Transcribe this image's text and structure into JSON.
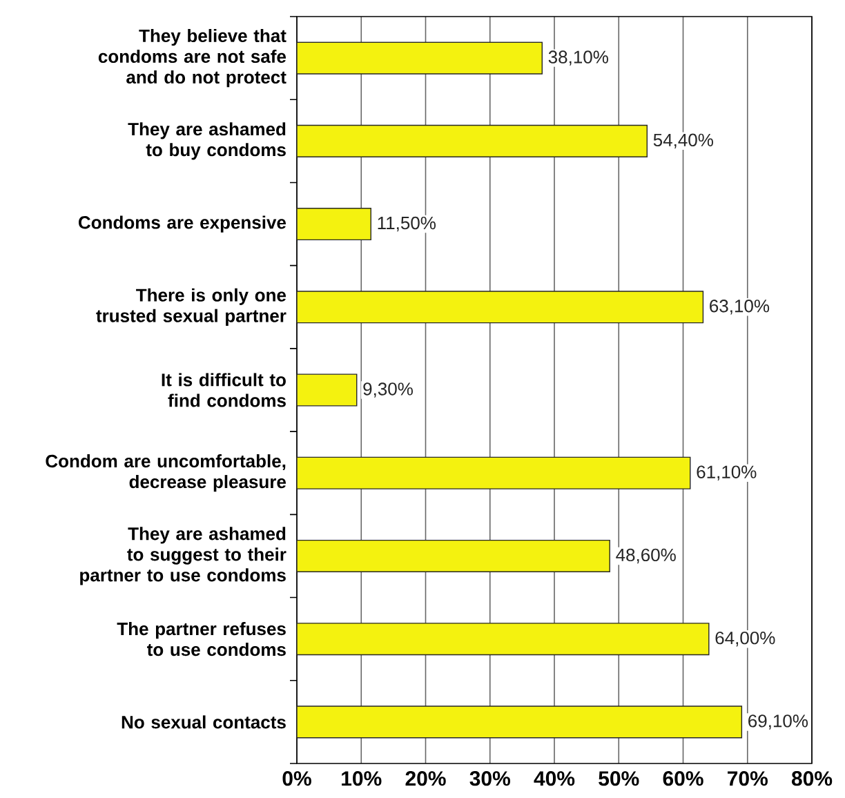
{
  "chart_data": {
    "type": "bar",
    "orientation": "horizontal",
    "categories": [
      "They believe that condoms are not safe and do not protect",
      "They are ashamed to buy condoms",
      "Condoms are expensive",
      "There is only one trusted sexual partner",
      "It is difficult to find condoms",
      "Condom are uncomfortable, decrease pleasure",
      "They are ashamed to suggest to their partner to use condoms",
      "The partner refuses to use condoms",
      "No sexual contacts"
    ],
    "values": [
      38.1,
      54.4,
      11.5,
      63.1,
      9.3,
      61.1,
      48.6,
      64.0,
      69.1
    ],
    "value_labels": [
      "38,10%",
      "54,40%",
      "11,50%",
      "63,10%",
      "9,30%",
      "61,10%",
      "48,60%",
      "64,00%",
      "69,10%"
    ],
    "color": "#f4f20f",
    "xlim": [
      0,
      80
    ],
    "xticks": [
      {
        "value": 0,
        "label": "0%"
      },
      {
        "value": 10,
        "label": "10%"
      },
      {
        "value": 20,
        "label": "20%"
      },
      {
        "value": 30,
        "label": "30%"
      },
      {
        "value": 40,
        "label": "40%"
      },
      {
        "value": 50,
        "label": "50%"
      },
      {
        "value": 60,
        "label": "60%"
      },
      {
        "value": 70,
        "label": "70%"
      },
      {
        "value": 80,
        "label": "80%"
      }
    ],
    "grid": "x"
  }
}
